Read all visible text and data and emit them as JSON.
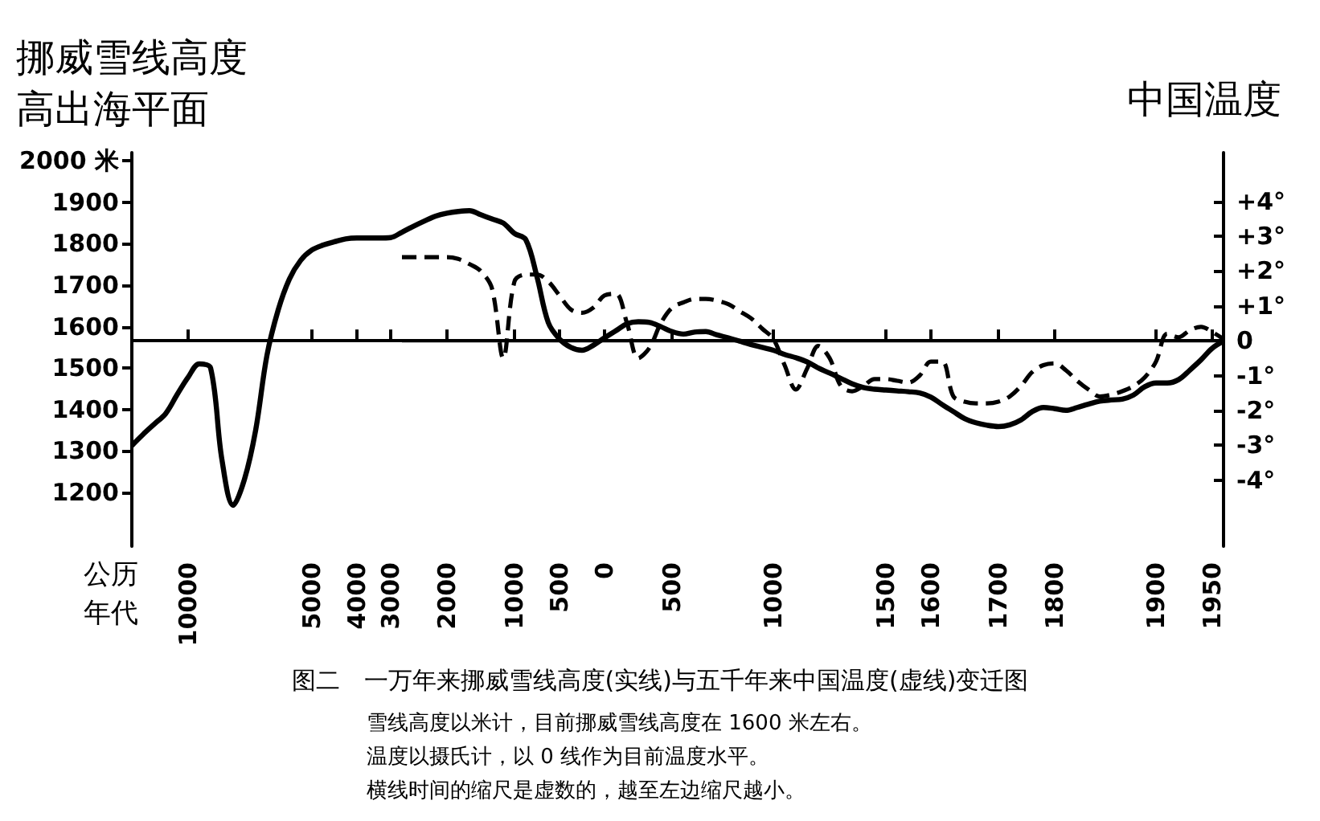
{
  "chart_data": {
    "type": "line",
    "title": "图二　一万年来挪威雪线高度(实线)与五千年来中国温度(虚线)变迁图",
    "ylabel": "挪威雪线高度高出海平面",
    "y2label": "中国温度",
    "xlabel": "公历年代",
    "annotations": [
      "雪线高度以米计，目前挪威雪线高度在 1600 米左右。",
      "温度以摄氏计，以 0 线作为目前温度水平。",
      "横线时间的缩尺是虚数的，越至左边缩尺越小。"
    ],
    "categories": [
      null,
      null,
      null,
      null,
      null,
      "10000",
      null,
      null,
      null,
      null,
      null,
      null,
      null,
      null,
      null,
      null,
      "5000",
      null,
      null,
      null,
      "4000",
      null,
      null,
      "3000",
      null,
      null,
      null,
      null,
      "2000",
      null,
      null,
      null,
      null,
      null,
      "1000",
      null,
      null,
      null,
      "500",
      null,
      null,
      null,
      "0",
      null,
      null,
      null,
      null,
      null,
      "500",
      null,
      null,
      null,
      null,
      null,
      null,
      null,
      null,
      "1000",
      null,
      null,
      null,
      null,
      null,
      null,
      null,
      null,
      null,
      "1500",
      null,
      null,
      null,
      "1600",
      null,
      null,
      null,
      null,
      null,
      "1700",
      null,
      null,
      null,
      null,
      "1800",
      null,
      null,
      null,
      null,
      null,
      null,
      null,
      null,
      "1900",
      null,
      null,
      null,
      null,
      "1950",
      null
    ],
    "series": [
      {
        "color": "#000000",
        "line_style": "solid",
        "values": [
          1313,
          1340,
          1365,
          1390,
          1435,
          1478,
          1510,
          1500,
          1280,
          1169,
          1231,
          1350,
          1530,
          1640,
          1715,
          1760,
          1785,
          1797,
          1805,
          1812,
          1814,
          1814,
          1814,
          1815,
          1828,
          1842,
          1855,
          1867,
          1874,
          1878,
          1880,
          1870,
          1860,
          1850,
          1825,
          1810,
          1720,
          1610,
          1570,
          1550,
          1543,
          1555,
          1573,
          1590,
          1607,
          1612,
          1610,
          1600,
          1588,
          1582,
          1587,
          1588,
          1580,
          1573,
          1565,
          1557,
          1550,
          1543,
          1533,
          1525,
          1515,
          1500,
          1488,
          1475,
          1462,
          1453,
          1449,
          1447,
          1445,
          1443,
          1440,
          1430,
          1412,
          1395,
          1378,
          1368,
          1362,
          1359,
          1363,
          1375,
          1395,
          1405,
          1402,
          1398,
          1405,
          1413,
          1420,
          1423,
          1425,
          1435,
          1455,
          1464,
          1464,
          1472,
          1495,
          1520,
          1548,
          1565
        ]
      },
      {
        "color": "#000000",
        "line_style": "dashed",
        "axis": "y2",
        "values": [
          null,
          null,
          null,
          null,
          null,
          null,
          null,
          null,
          null,
          null,
          null,
          null,
          null,
          null,
          null,
          null,
          null,
          null,
          null,
          null,
          null,
          null,
          null,
          null,
          2.4,
          2.4,
          2.4,
          2.4,
          2.4,
          2.35,
          2.2,
          2.0,
          1.5,
          -0.5,
          1.7,
          1.9,
          1.9,
          1.7,
          1.3,
          0.9,
          0.8,
          0.95,
          1.3,
          1.35,
          0.5,
          -0.5,
          -0.2,
          0.5,
          0.95,
          1.1,
          1.2,
          1.2,
          1.15,
          1.05,
          0.85,
          0.65,
          0.35,
          0.05,
          -0.7,
          -1.4,
          -0.8,
          -0.15,
          -0.5,
          -1.3,
          -1.45,
          -1.3,
          -1.1,
          -1.1,
          -1.15,
          -1.2,
          -1.0,
          -0.6,
          -0.6,
          -1.6,
          -1.75,
          -1.8,
          -1.8,
          -1.75,
          -1.6,
          -1.3,
          -0.9,
          -0.7,
          -0.65,
          -0.85,
          -1.15,
          -1.4,
          -1.6,
          -1.55,
          -1.45,
          -1.3,
          -1.05,
          -0.6,
          0.2,
          0.1,
          0.3,
          0.4,
          0.25,
          0.05
        ]
      }
    ],
    "ylim": [
      1070,
      2020
    ],
    "yticks": [
      {
        "value": 2000,
        "label": "2000 米"
      },
      1900,
      1800,
      1700,
      1600,
      1500,
      1400,
      1300,
      1200
    ],
    "y2lim": [
      -5.9,
      5.4
    ],
    "y2ticks": [
      {
        "value": 4,
        "label": "+4°"
      },
      {
        "value": 3,
        "label": "+3°"
      },
      {
        "value": 2,
        "label": "+2°"
      },
      {
        "value": 1,
        "label": "+1°"
      },
      0,
      {
        "value": -1,
        "label": "-1°"
      },
      {
        "value": -2,
        "label": "-2°"
      },
      {
        "value": -3,
        "label": "-3°"
      },
      {
        "value": -4,
        "label": "-4°"
      }
    ],
    "ref_lines": [
      {
        "axis": "y2",
        "value": 0,
        "color": "#000000"
      }
    ],
    "grid": false,
    "marker": "none"
  }
}
